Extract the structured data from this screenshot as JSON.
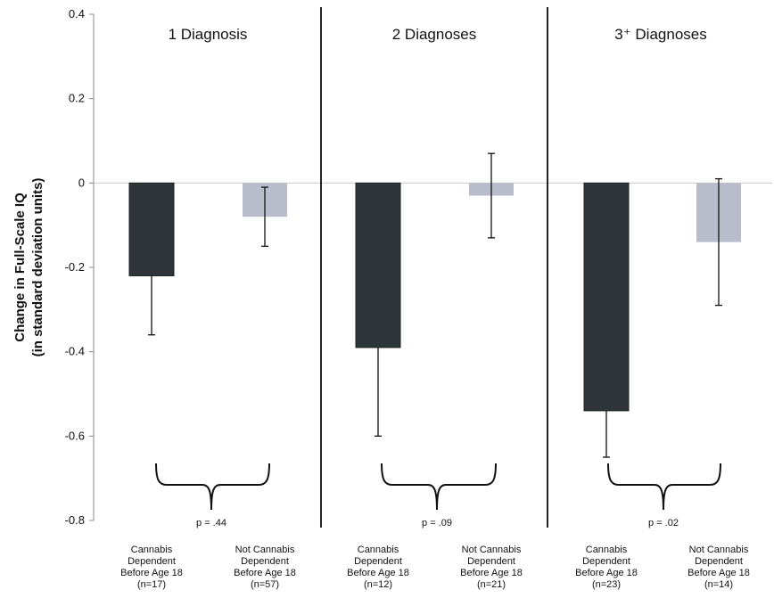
{
  "chart_data": {
    "type": "bar",
    "ylabel": [
      "Change in Full-Scale IQ",
      "(in standard deviation units)"
    ],
    "ylim": [
      -0.8,
      0.4
    ],
    "yticks": [
      "0.4",
      "0.2",
      "0",
      "-0.2",
      "-0.4",
      "-0.6",
      "-0.8"
    ],
    "ytick_values": [
      0.4,
      0.2,
      0,
      -0.2,
      -0.4,
      -0.6,
      -0.8
    ],
    "grid": false,
    "colors": {
      "dependent": "#2e3539",
      "not_dependent": "#b9bccb"
    },
    "panels": [
      {
        "title": "1 Diagnosis",
        "p_value": "p = .44",
        "bars": [
          {
            "label": [
              "Cannabis",
              "Dependent",
              "Before Age 18",
              "(n=17)"
            ],
            "value": -0.22,
            "err_low": -0.36,
            "err_high": -0.22,
            "group": "dependent"
          },
          {
            "label": [
              "Not Cannabis",
              "Dependent",
              "Before Age 18",
              "(n=57)"
            ],
            "value": -0.08,
            "err_low": -0.15,
            "err_high": -0.01,
            "group": "not_dependent"
          }
        ]
      },
      {
        "title": "2 Diagnoses",
        "p_value": "p = .09",
        "bars": [
          {
            "label": [
              "Cannabis",
              "Dependent",
              "Before Age 18",
              "(n=12)"
            ],
            "value": -0.39,
            "err_low": -0.6,
            "err_high": -0.39,
            "group": "dependent"
          },
          {
            "label": [
              "Not Cannabis",
              "Dependent",
              "Before Age 18",
              "(n=21)"
            ],
            "value": -0.03,
            "err_low": -0.13,
            "err_high": 0.07,
            "group": "not_dependent"
          }
        ]
      },
      {
        "title": "3⁺ Diagnoses",
        "p_value": "p = .02",
        "bars": [
          {
            "label": [
              "Cannabis",
              "Dependent",
              "Before Age 18",
              "(n=23)"
            ],
            "value": -0.54,
            "err_low": -0.65,
            "err_high": -0.54,
            "group": "dependent"
          },
          {
            "label": [
              "Not Cannabis",
              "Dependent",
              "Before Age 18",
              "(n=14)"
            ],
            "value": -0.14,
            "err_low": -0.29,
            "err_high": 0.01,
            "group": "not_dependent"
          }
        ]
      }
    ]
  }
}
